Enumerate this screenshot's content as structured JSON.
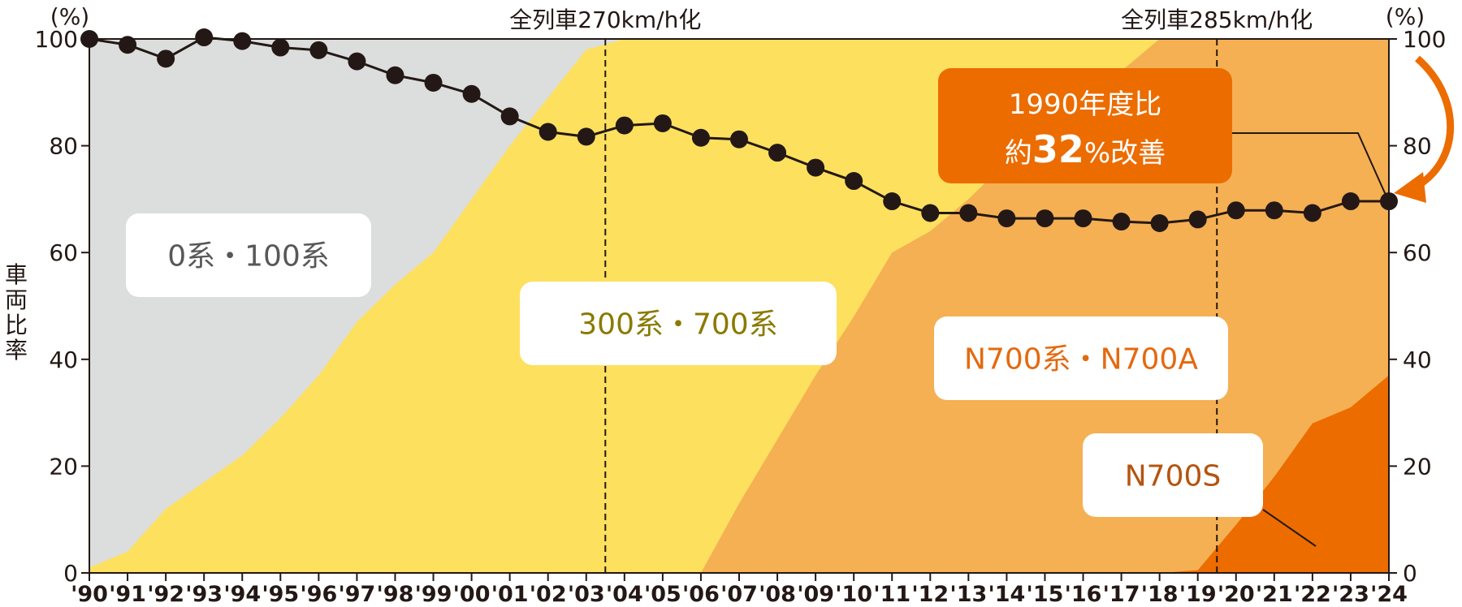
{
  "chart_data": {
    "type": "area",
    "title": "",
    "ylabel": "車両比率",
    "y_unit_left": "(%)",
    "y_unit_right": "(%)",
    "ylim_left": [
      0,
      100
    ],
    "ylim_right": [
      0,
      100
    ],
    "yticks": [
      0,
      20,
      40,
      60,
      80,
      100
    ],
    "x": [
      "'90",
      "'91",
      "'92",
      "'93",
      "'94",
      "'95",
      "'96",
      "'97",
      "'98",
      "'99",
      "'00",
      "'01",
      "'02",
      "'03",
      "'04",
      "'05",
      "'06",
      "'07",
      "'08",
      "'09",
      "'10",
      "'11",
      "'12",
      "'13",
      "'14",
      "'15",
      "'16",
      "'17",
      "'18",
      "'19",
      "'20",
      "'21",
      "'22",
      "'23",
      "'24"
    ],
    "stacked_series": [
      {
        "name": "N700S",
        "color": "#ec6c00",
        "upper_boundary": [
          0,
          0,
          0,
          0,
          0,
          0,
          0,
          0,
          0,
          0,
          0,
          0,
          0,
          0,
          0,
          0,
          0,
          0,
          0,
          0,
          0,
          0,
          0,
          0,
          0,
          0,
          0,
          0,
          0,
          0.5,
          9,
          18,
          28,
          31,
          37
        ]
      },
      {
        "name": "N700系・N700A",
        "color": "#f5b053",
        "upper_boundary": [
          0,
          0,
          0,
          0,
          0,
          0,
          0,
          0,
          0,
          0,
          0,
          0,
          0,
          0,
          0,
          0,
          0,
          13,
          25,
          37,
          48,
          60,
          64,
          70,
          77,
          84,
          90,
          94,
          100,
          100,
          100,
          100,
          100,
          100,
          100
        ]
      },
      {
        "name": "300系・700系",
        "color": "#fde05e",
        "upper_boundary": [
          1,
          4,
          12,
          17,
          22,
          29,
          37,
          47,
          54,
          60,
          70,
          80,
          89,
          98,
          100,
          100,
          100,
          100,
          100,
          100,
          100,
          100,
          100,
          100,
          100,
          100,
          100,
          100,
          100,
          100,
          100,
          100,
          100,
          100,
          100
        ]
      },
      {
        "name": "0系・100系",
        "color": "#dcdddd",
        "upper_boundary": [
          100,
          100,
          100,
          100,
          100,
          100,
          100,
          100,
          100,
          100,
          100,
          100,
          100,
          100,
          100,
          100,
          100,
          100,
          100,
          100,
          100,
          100,
          100,
          100,
          100,
          100,
          100,
          100,
          100,
          100,
          100,
          100,
          100,
          100,
          100
        ]
      }
    ],
    "line_series": {
      "name": "",
      "color": "#231815",
      "values": [
        100,
        98.9,
        96.3,
        100.3,
        99.6,
        98.4,
        97.9,
        95.8,
        93.2,
        91.8,
        89.7,
        85.5,
        82.6,
        81.7,
        83.8,
        84.2,
        81.5,
        81.2,
        78.7,
        75.9,
        73.4,
        69.6,
        67.4,
        67.4,
        66.4,
        66.4,
        66.4,
        65.8,
        65.5,
        66.2,
        67.9,
        67.9,
        67.4,
        69.6,
        69.6
      ]
    },
    "area_labels": [
      {
        "text": "0系・100系",
        "color": "#595757"
      },
      {
        "text": "300系・700系",
        "color": "#8a7a00"
      },
      {
        "text": "N700系・N700A",
        "color": "#e5690f"
      },
      {
        "text": "N700S",
        "color": "#b5540f"
      }
    ],
    "annotations": [
      {
        "text": "全列車270km/h化",
        "x_between": [
          "'03",
          "'04"
        ]
      },
      {
        "text": "全列車285km/h化",
        "x_between": [
          "'19",
          "'20"
        ]
      }
    ],
    "callout": {
      "line1": "1990年度比",
      "line2_prefix": "約",
      "line2_number": "32",
      "line2_suffix": "%改善",
      "color": "#ec6c00"
    },
    "grid": false
  }
}
